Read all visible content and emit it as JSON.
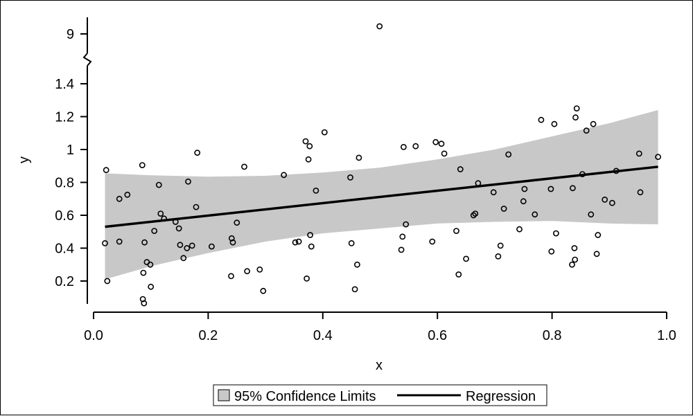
{
  "chart_data": {
    "type": "scatter",
    "title": "",
    "xlabel": "x",
    "ylabel": "y",
    "xlim": [
      0.0,
      1.0
    ],
    "ylim_main": [
      0.05,
      1.53
    ],
    "y_axis_break": {
      "between": [
        1.53,
        8.9
      ],
      "upper_tick": 9
    },
    "x_ticks": [
      "0.0",
      "0.2",
      "0.4",
      "0.6",
      "0.8",
      "1.0"
    ],
    "x_tick_values": [
      0.0,
      0.2,
      0.4,
      0.6,
      0.8,
      1.0
    ],
    "y_ticks": [
      "0.2",
      "0.4",
      "0.6",
      "0.8",
      "1",
      "1.2",
      "1.4"
    ],
    "y_tick_values": [
      0.2,
      0.4,
      0.6,
      0.8,
      1.0,
      1.2,
      1.4
    ],
    "y_ticks_upper": [
      "9"
    ],
    "grid": false,
    "legend_position": "bottom-center",
    "legend": {
      "items": [
        {
          "label": "95% Confidence Limits",
          "kind": "band",
          "color": "#c8c8c8"
        },
        {
          "label": "Regression",
          "kind": "line",
          "color": "#000000"
        }
      ]
    },
    "regression": {
      "x": [
        0.02,
        0.985
      ],
      "y": [
        0.53,
        0.895
      ]
    },
    "confidence_band": {
      "x": [
        0.02,
        0.1,
        0.2,
        0.3,
        0.4,
        0.5,
        0.6,
        0.7,
        0.8,
        0.9,
        0.985
      ],
      "lower": [
        0.21,
        0.29,
        0.37,
        0.44,
        0.49,
        0.52,
        0.55,
        0.56,
        0.565,
        0.55,
        0.545
      ],
      "upper": [
        0.855,
        0.843,
        0.835,
        0.84,
        0.86,
        0.89,
        0.94,
        1.0,
        1.08,
        1.16,
        1.24
      ]
    },
    "points": [
      {
        "x": 0.022,
        "y": 0.875
      },
      {
        "x": 0.02,
        "y": 0.43
      },
      {
        "x": 0.024,
        "y": 0.2
      },
      {
        "x": 0.045,
        "y": 0.7
      },
      {
        "x": 0.045,
        "y": 0.44
      },
      {
        "x": 0.059,
        "y": 0.725
      },
      {
        "x": 0.085,
        "y": 0.905
      },
      {
        "x": 0.087,
        "y": 0.25
      },
      {
        "x": 0.086,
        "y": 0.09
      },
      {
        "x": 0.088,
        "y": 0.065
      },
      {
        "x": 0.089,
        "y": 0.435
      },
      {
        "x": 0.093,
        "y": 0.315
      },
      {
        "x": 0.099,
        "y": 0.3
      },
      {
        "x": 0.1,
        "y": 0.165
      },
      {
        "x": 0.106,
        "y": 0.505
      },
      {
        "x": 0.114,
        "y": 0.785
      },
      {
        "x": 0.117,
        "y": 0.61
      },
      {
        "x": 0.123,
        "y": 0.58
      },
      {
        "x": 0.143,
        "y": 0.56
      },
      {
        "x": 0.149,
        "y": 0.52
      },
      {
        "x": 0.151,
        "y": 0.42
      },
      {
        "x": 0.157,
        "y": 0.34
      },
      {
        "x": 0.163,
        "y": 0.4
      },
      {
        "x": 0.165,
        "y": 0.805
      },
      {
        "x": 0.172,
        "y": 0.415
      },
      {
        "x": 0.179,
        "y": 0.65
      },
      {
        "x": 0.181,
        "y": 0.98
      },
      {
        "x": 0.206,
        "y": 0.41
      },
      {
        "x": 0.24,
        "y": 0.23
      },
      {
        "x": 0.241,
        "y": 0.46
      },
      {
        "x": 0.243,
        "y": 0.435
      },
      {
        "x": 0.25,
        "y": 0.555
      },
      {
        "x": 0.263,
        "y": 0.895
      },
      {
        "x": 0.268,
        "y": 0.26
      },
      {
        "x": 0.29,
        "y": 0.27
      },
      {
        "x": 0.296,
        "y": 0.14
      },
      {
        "x": 0.332,
        "y": 0.845
      },
      {
        "x": 0.352,
        "y": 0.435
      },
      {
        "x": 0.358,
        "y": 0.44
      },
      {
        "x": 0.37,
        "y": 1.05
      },
      {
        "x": 0.372,
        "y": 0.215
      },
      {
        "x": 0.375,
        "y": 0.94
      },
      {
        "x": 0.377,
        "y": 1.02
      },
      {
        "x": 0.378,
        "y": 0.48
      },
      {
        "x": 0.38,
        "y": 0.41
      },
      {
        "x": 0.388,
        "y": 0.75
      },
      {
        "x": 0.403,
        "y": 1.105
      },
      {
        "x": 0.448,
        "y": 0.83
      },
      {
        "x": 0.45,
        "y": 0.43
      },
      {
        "x": 0.456,
        "y": 0.15
      },
      {
        "x": 0.46,
        "y": 0.3
      },
      {
        "x": 0.463,
        "y": 0.95
      },
      {
        "x": 0.499,
        "y": 9.2
      },
      {
        "x": 0.537,
        "y": 0.39
      },
      {
        "x": 0.539,
        "y": 0.47
      },
      {
        "x": 0.541,
        "y": 1.015
      },
      {
        "x": 0.545,
        "y": 0.545
      },
      {
        "x": 0.562,
        "y": 1.02
      },
      {
        "x": 0.591,
        "y": 0.44
      },
      {
        "x": 0.597,
        "y": 1.045
      },
      {
        "x": 0.607,
        "y": 1.035
      },
      {
        "x": 0.612,
        "y": 0.975
      },
      {
        "x": 0.633,
        "y": 0.505
      },
      {
        "x": 0.637,
        "y": 0.24
      },
      {
        "x": 0.64,
        "y": 0.88
      },
      {
        "x": 0.65,
        "y": 0.335
      },
      {
        "x": 0.663,
        "y": 0.6
      },
      {
        "x": 0.666,
        "y": 0.61
      },
      {
        "x": 0.671,
        "y": 0.795
      },
      {
        "x": 0.698,
        "y": 0.74
      },
      {
        "x": 0.706,
        "y": 0.35
      },
      {
        "x": 0.71,
        "y": 0.415
      },
      {
        "x": 0.716,
        "y": 0.64
      },
      {
        "x": 0.724,
        "y": 0.97
      },
      {
        "x": 0.743,
        "y": 0.515
      },
      {
        "x": 0.75,
        "y": 0.685
      },
      {
        "x": 0.752,
        "y": 0.76
      },
      {
        "x": 0.77,
        "y": 0.605
      },
      {
        "x": 0.781,
        "y": 1.18
      },
      {
        "x": 0.798,
        "y": 0.76
      },
      {
        "x": 0.799,
        "y": 0.38
      },
      {
        "x": 0.804,
        "y": 1.155
      },
      {
        "x": 0.807,
        "y": 0.49
      },
      {
        "x": 0.835,
        "y": 0.3
      },
      {
        "x": 0.836,
        "y": 0.765
      },
      {
        "x": 0.839,
        "y": 0.4
      },
      {
        "x": 0.84,
        "y": 0.33
      },
      {
        "x": 0.841,
        "y": 1.195
      },
      {
        "x": 0.843,
        "y": 1.25
      },
      {
        "x": 0.853,
        "y": 0.85
      },
      {
        "x": 0.86,
        "y": 1.115
      },
      {
        "x": 0.868,
        "y": 0.605
      },
      {
        "x": 0.872,
        "y": 1.155
      },
      {
        "x": 0.878,
        "y": 0.365
      },
      {
        "x": 0.88,
        "y": 0.48
      },
      {
        "x": 0.892,
        "y": 0.695
      },
      {
        "x": 0.905,
        "y": 0.675
      },
      {
        "x": 0.912,
        "y": 0.87
      },
      {
        "x": 0.952,
        "y": 0.975
      },
      {
        "x": 0.954,
        "y": 0.74
      },
      {
        "x": 0.985,
        "y": 0.955
      }
    ]
  }
}
